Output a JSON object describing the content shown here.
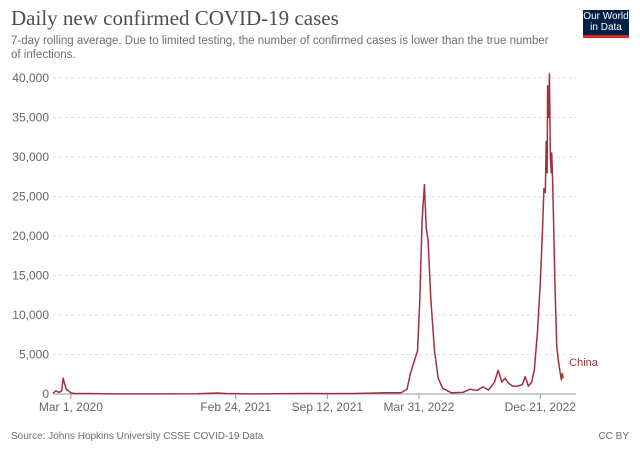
{
  "header": {
    "title": "Daily new confirmed COVID-19 cases",
    "subtitle": "7-day rolling average. Due to limited testing, the number of confirmed cases is lower than the true number of infections."
  },
  "logo": {
    "line1": "Our World",
    "line2": "in Data"
  },
  "footer": {
    "source": "Source: Johns Hopkins University CSSE COVID-19 Data",
    "license": "CC BY"
  },
  "colors": {
    "series": "#a2303c",
    "grid": "#dddddd",
    "text": "#666666",
    "logo_bg": "#002147",
    "logo_accent": "#d42b21"
  },
  "chart_data": {
    "type": "line",
    "title": "Daily new confirmed COVID-19 cases",
    "subtitle": "7-day rolling average. Due to limited testing, the number of confirmed cases is lower than the true number of infections.",
    "x_axis": {
      "type": "date",
      "range": [
        "2020-01-22",
        "2023-03-09"
      ],
      "tick_labels": [
        "Mar 1, 2020",
        "Feb 24, 2021",
        "Sep 12, 2021",
        "Mar 31, 2022",
        "Dec 21, 2022"
      ],
      "tick_dates": [
        "2020-03-01",
        "2021-02-24",
        "2021-09-12",
        "2022-03-31",
        "2022-12-21"
      ]
    },
    "y_axis": {
      "range": [
        0,
        40000
      ],
      "ticks": [
        0,
        5000,
        10000,
        15000,
        20000,
        25000,
        30000,
        35000,
        40000
      ],
      "tick_labels": [
        "0",
        "5,000",
        "10,000",
        "15,000",
        "20,000",
        "25,000",
        "30,000",
        "35,000",
        "40,000"
      ]
    },
    "grid": "horizontal dashed",
    "legend": "inline label at end of line",
    "series": [
      {
        "name": "China",
        "points": [
          [
            "2020-01-22",
            80
          ],
          [
            "2020-01-28",
            400
          ],
          [
            "2020-02-04",
            200
          ],
          [
            "2020-02-10",
            400
          ],
          [
            "2020-02-13",
            2000
          ],
          [
            "2020-02-20",
            600
          ],
          [
            "2020-03-01",
            150
          ],
          [
            "2020-03-10",
            50
          ],
          [
            "2020-04-01",
            60
          ],
          [
            "2020-06-01",
            20
          ],
          [
            "2020-09-01",
            20
          ],
          [
            "2020-12-01",
            30
          ],
          [
            "2021-01-15",
            120
          ],
          [
            "2021-02-01",
            60
          ],
          [
            "2021-04-01",
            20
          ],
          [
            "2021-08-01",
            60
          ],
          [
            "2021-09-15",
            40
          ],
          [
            "2021-11-10",
            70
          ],
          [
            "2022-01-15",
            150
          ],
          [
            "2022-02-20",
            160
          ],
          [
            "2022-03-05",
            600
          ],
          [
            "2022-03-12",
            2500
          ],
          [
            "2022-03-20",
            4000
          ],
          [
            "2022-03-28",
            5500
          ],
          [
            "2022-04-02",
            12000
          ],
          [
            "2022-04-07",
            22000
          ],
          [
            "2022-04-12",
            26500
          ],
          [
            "2022-04-16",
            21000
          ],
          [
            "2022-04-20",
            19500
          ],
          [
            "2022-04-26",
            12000
          ],
          [
            "2022-05-04",
            5500
          ],
          [
            "2022-05-12",
            2000
          ],
          [
            "2022-05-22",
            700
          ],
          [
            "2022-06-10",
            150
          ],
          [
            "2022-07-05",
            200
          ],
          [
            "2022-07-20",
            600
          ],
          [
            "2022-08-05",
            450
          ],
          [
            "2022-08-18",
            900
          ],
          [
            "2022-08-30",
            500
          ],
          [
            "2022-09-12",
            1500
          ],
          [
            "2022-09-20",
            3000
          ],
          [
            "2022-09-28",
            1500
          ],
          [
            "2022-10-05",
            2000
          ],
          [
            "2022-10-12",
            1400
          ],
          [
            "2022-10-22",
            1000
          ],
          [
            "2022-11-02",
            1000
          ],
          [
            "2022-11-12",
            1200
          ],
          [
            "2022-11-18",
            2200
          ],
          [
            "2022-11-25",
            1000
          ],
          [
            "2022-12-02",
            1500
          ],
          [
            "2022-12-08",
            3000
          ],
          [
            "2022-12-15",
            8000
          ],
          [
            "2022-12-21",
            14000
          ],
          [
            "2022-12-26",
            21000
          ],
          [
            "2022-12-29",
            26000
          ],
          [
            "2023-01-01",
            25500
          ],
          [
            "2023-01-03",
            32000
          ],
          [
            "2023-01-05",
            28000
          ],
          [
            "2023-01-06",
            39000
          ],
          [
            "2023-01-08",
            35000
          ],
          [
            "2023-01-10",
            40500
          ],
          [
            "2023-01-12",
            30000
          ],
          [
            "2023-01-14",
            28000
          ],
          [
            "2023-01-15",
            30500
          ],
          [
            "2023-01-17",
            27000
          ],
          [
            "2023-01-19",
            22000
          ],
          [
            "2023-01-22",
            14000
          ],
          [
            "2023-01-26",
            6000
          ],
          [
            "2023-01-30",
            4000
          ],
          [
            "2023-02-03",
            2500
          ],
          [
            "2023-02-05",
            1800
          ],
          [
            "2023-02-07",
            2600
          ],
          [
            "2023-02-09",
            2000
          ]
        ],
        "end_label": "China"
      }
    ]
  }
}
